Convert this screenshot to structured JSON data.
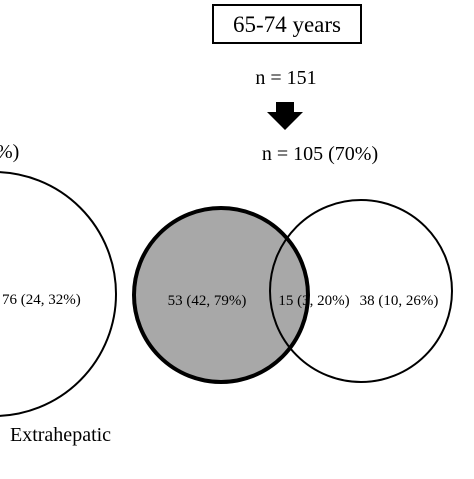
{
  "header": {
    "title": "65-74 years"
  },
  "flow": {
    "initial": "n = 151",
    "arrow_icon": "down-arrow-icon",
    "final": "n = 105 (70%)"
  },
  "left_panel": {
    "partial_header": "%)",
    "circle_value": "76 (24, 32%)",
    "label": "Extrahepatic"
  },
  "venn": {
    "left_value": "53 (42, 79%)",
    "overlap_value": "15 (3, 20%)",
    "right_value": "38 (10, 26%)",
    "colors": {
      "shaded_fill": "#a8a8a8",
      "stroke": "#000000",
      "background": "#ffffff"
    }
  }
}
